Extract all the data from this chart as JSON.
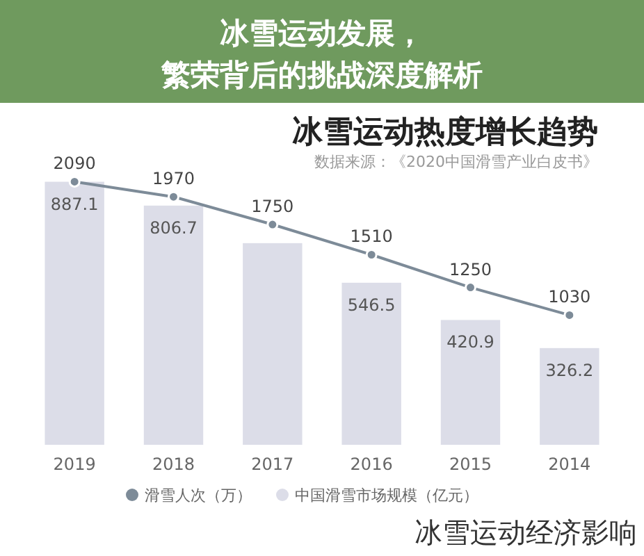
{
  "chart_data": {
    "type": "bar",
    "title": "冰雪运动热度增长趋势",
    "subtitle": "数据来源：《2020中国滑雪产业白皮书》",
    "categories": [
      "2019",
      "2018",
      "2017",
      "2016",
      "2015",
      "2014"
    ],
    "series": [
      {
        "name": "滑雪人次（万）",
        "type": "line",
        "axis": "y2",
        "color": "#7d8b98",
        "marker": "circle",
        "values": [
          2090,
          1970,
          1750,
          1510,
          1250,
          1030
        ],
        "value_labels": [
          "2090",
          "1970",
          "1750",
          "1510",
          "1250",
          "1030"
        ]
      },
      {
        "name": "中国滑雪市场规模（亿元）",
        "color": "#dcdde8",
        "values": [
          887.1,
          806.7,
          680,
          546.5,
          420.9,
          326.2
        ],
        "value_labels": [
          "887.1",
          "806.7",
          null,
          "546.5",
          "420.9",
          "326.2"
        ]
      }
    ],
    "ylim": [
      0,
      900
    ],
    "y2lim": [
      0,
      2120
    ],
    "tick_labels": false,
    "legend": "bottom",
    "annotations": [
      "冰雪运动发展，繁荣背后的挑战深度解析",
      "冰雪运动经济影响"
    ]
  }
}
